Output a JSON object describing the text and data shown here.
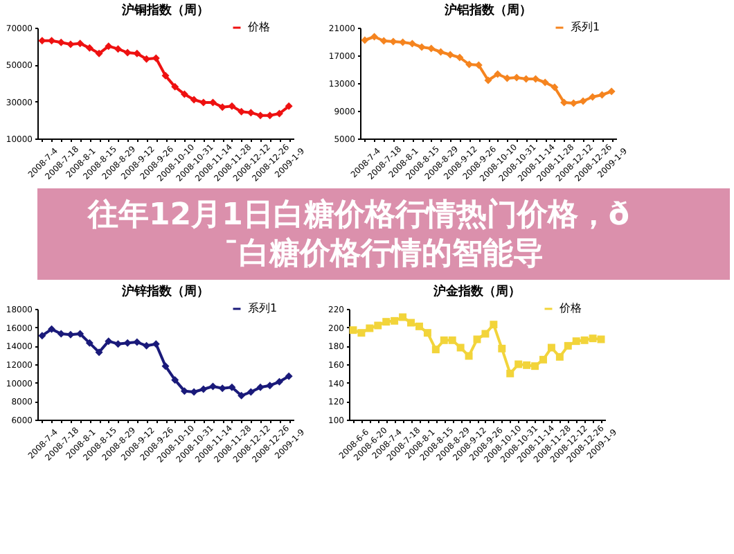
{
  "chart_data": [
    {
      "type": "line",
      "title": "沪铜指数（周）",
      "categories": [
        "2008-7-4",
        null,
        "2008-7-18",
        null,
        "2008-8-1",
        null,
        "2008-8-15",
        null,
        "2008-8-29",
        null,
        "2008-9-12",
        null,
        "2008-9-26",
        null,
        "2008-10-10",
        null,
        "2008-10-31",
        null,
        "2008-11-14",
        null,
        "2008-11-28",
        null,
        "2008-12-12",
        null,
        "2008-12-26",
        null,
        "2009-1-9"
      ],
      "series": [
        {
          "name": "价格",
          "color": "#ee1111",
          "values": [
            63000,
            63000,
            62000,
            61000,
            61500,
            59000,
            56000,
            60000,
            58500,
            56500,
            56000,
            53000,
            53500,
            44000,
            38000,
            34000,
            31000,
            29500,
            29500,
            27000,
            27500,
            24500,
            24000,
            22500,
            22500,
            23500,
            27500
          ]
        }
      ],
      "ylim": [
        10000,
        70000
      ],
      "yticks": [
        10000,
        30000,
        50000,
        70000
      ],
      "grid": false,
      "legend": "top right",
      "marker": "diamond"
    },
    {
      "type": "line",
      "title": "沪铝指数（周）",
      "categories": [
        "2008-7-4",
        null,
        "2008-7-18",
        null,
        "2008-8-1",
        null,
        "2008-8-15",
        null,
        "2008-8-29",
        null,
        "2008-9-12",
        null,
        "2008-9-26",
        null,
        "2008-10-10",
        null,
        "2008-10-31",
        null,
        "2008-11-14",
        null,
        "2008-11-28",
        null,
        "2008-12-12",
        null,
        "2008-12-26",
        null,
        "2009-1-9"
      ],
      "series": [
        {
          "name": "系列1",
          "color": "#f5841f",
          "values": [
            19200,
            19700,
            19100,
            19000,
            18900,
            18700,
            18200,
            18000,
            17500,
            17100,
            16700,
            15700,
            15600,
            13400,
            14300,
            13700,
            13800,
            13600,
            13600,
            13100,
            12400,
            10200,
            10100,
            10400,
            11000,
            11300,
            11800
          ]
        }
      ],
      "ylim": [
        5000,
        21000
      ],
      "yticks": [
        5000,
        9000,
        13000,
        17000,
        21000
      ],
      "grid": false,
      "legend": "top right",
      "marker": "diamond"
    },
    {
      "type": "other",
      "title": "往年12月1日白糖价格行情热门价格，ð¯白糖价格行情的智能导"
    },
    {
      "type": "line",
      "title": "沪锌指数（周）",
      "categories": [
        "2008-7-4",
        null,
        "2008-7-18",
        null,
        "2008-8-1",
        null,
        "2008-8-15",
        null,
        "2008-8-29",
        null,
        "2008-9-12",
        null,
        "2008-9-26",
        null,
        "2008-10-10",
        null,
        "2008-10-31",
        null,
        "2008-11-14",
        null,
        "2008-11-28",
        null,
        "2008-12-12",
        null,
        "2008-12-26",
        null,
        "2009-1-9"
      ],
      "series": [
        {
          "name": "系列1",
          "color": "#1a1a7a",
          "values": [
            15100,
            15800,
            15300,
            15200,
            15300,
            14300,
            13300,
            14500,
            14200,
            14300,
            14400,
            14000,
            14200,
            11800,
            10300,
            9100,
            9000,
            9300,
            9600,
            9400,
            9500,
            8600,
            9000,
            9500,
            9700,
            10100,
            10700
          ]
        }
      ],
      "ylim": [
        6000,
        18000
      ],
      "yticks": [
        6000,
        8000,
        10000,
        12000,
        14000,
        16000,
        18000
      ],
      "grid": false,
      "legend": "top right",
      "marker": "diamond"
    },
    {
      "type": "line",
      "title": "沪金指数（周）",
      "categories": [
        "2008-6-6",
        null,
        "2008-6-20",
        null,
        "2008-7-4",
        null,
        "2008-7-18",
        null,
        "2008-8-1",
        null,
        "2008-8-15",
        null,
        "2008-8-29",
        null,
        "2008-9-12",
        null,
        "2008-9-26",
        null,
        "2008-10-10",
        null,
        "2008-10-31",
        null,
        "2008-11-14",
        null,
        "2008-11-28",
        null,
        "2008-12-12",
        null,
        "2008-12-26",
        null,
        "2009-1-9"
      ],
      "series": [
        {
          "name": "价格",
          "color": "#f2d43a",
          "values": [
            197,
            194,
            199,
            202,
            206,
            207,
            211,
            205,
            201,
            194,
            176,
            186,
            186,
            178,
            169,
            187,
            193,
            203,
            177,
            150,
            160,
            159,
            158,
            165,
            178,
            168,
            180,
            185,
            186,
            188,
            187
          ]
        }
      ],
      "ylim": [
        100,
        220
      ],
      "yticks": [
        100,
        120,
        140,
        160,
        180,
        200,
        220
      ],
      "grid": false,
      "legend": "top right",
      "marker": "square"
    }
  ]
}
